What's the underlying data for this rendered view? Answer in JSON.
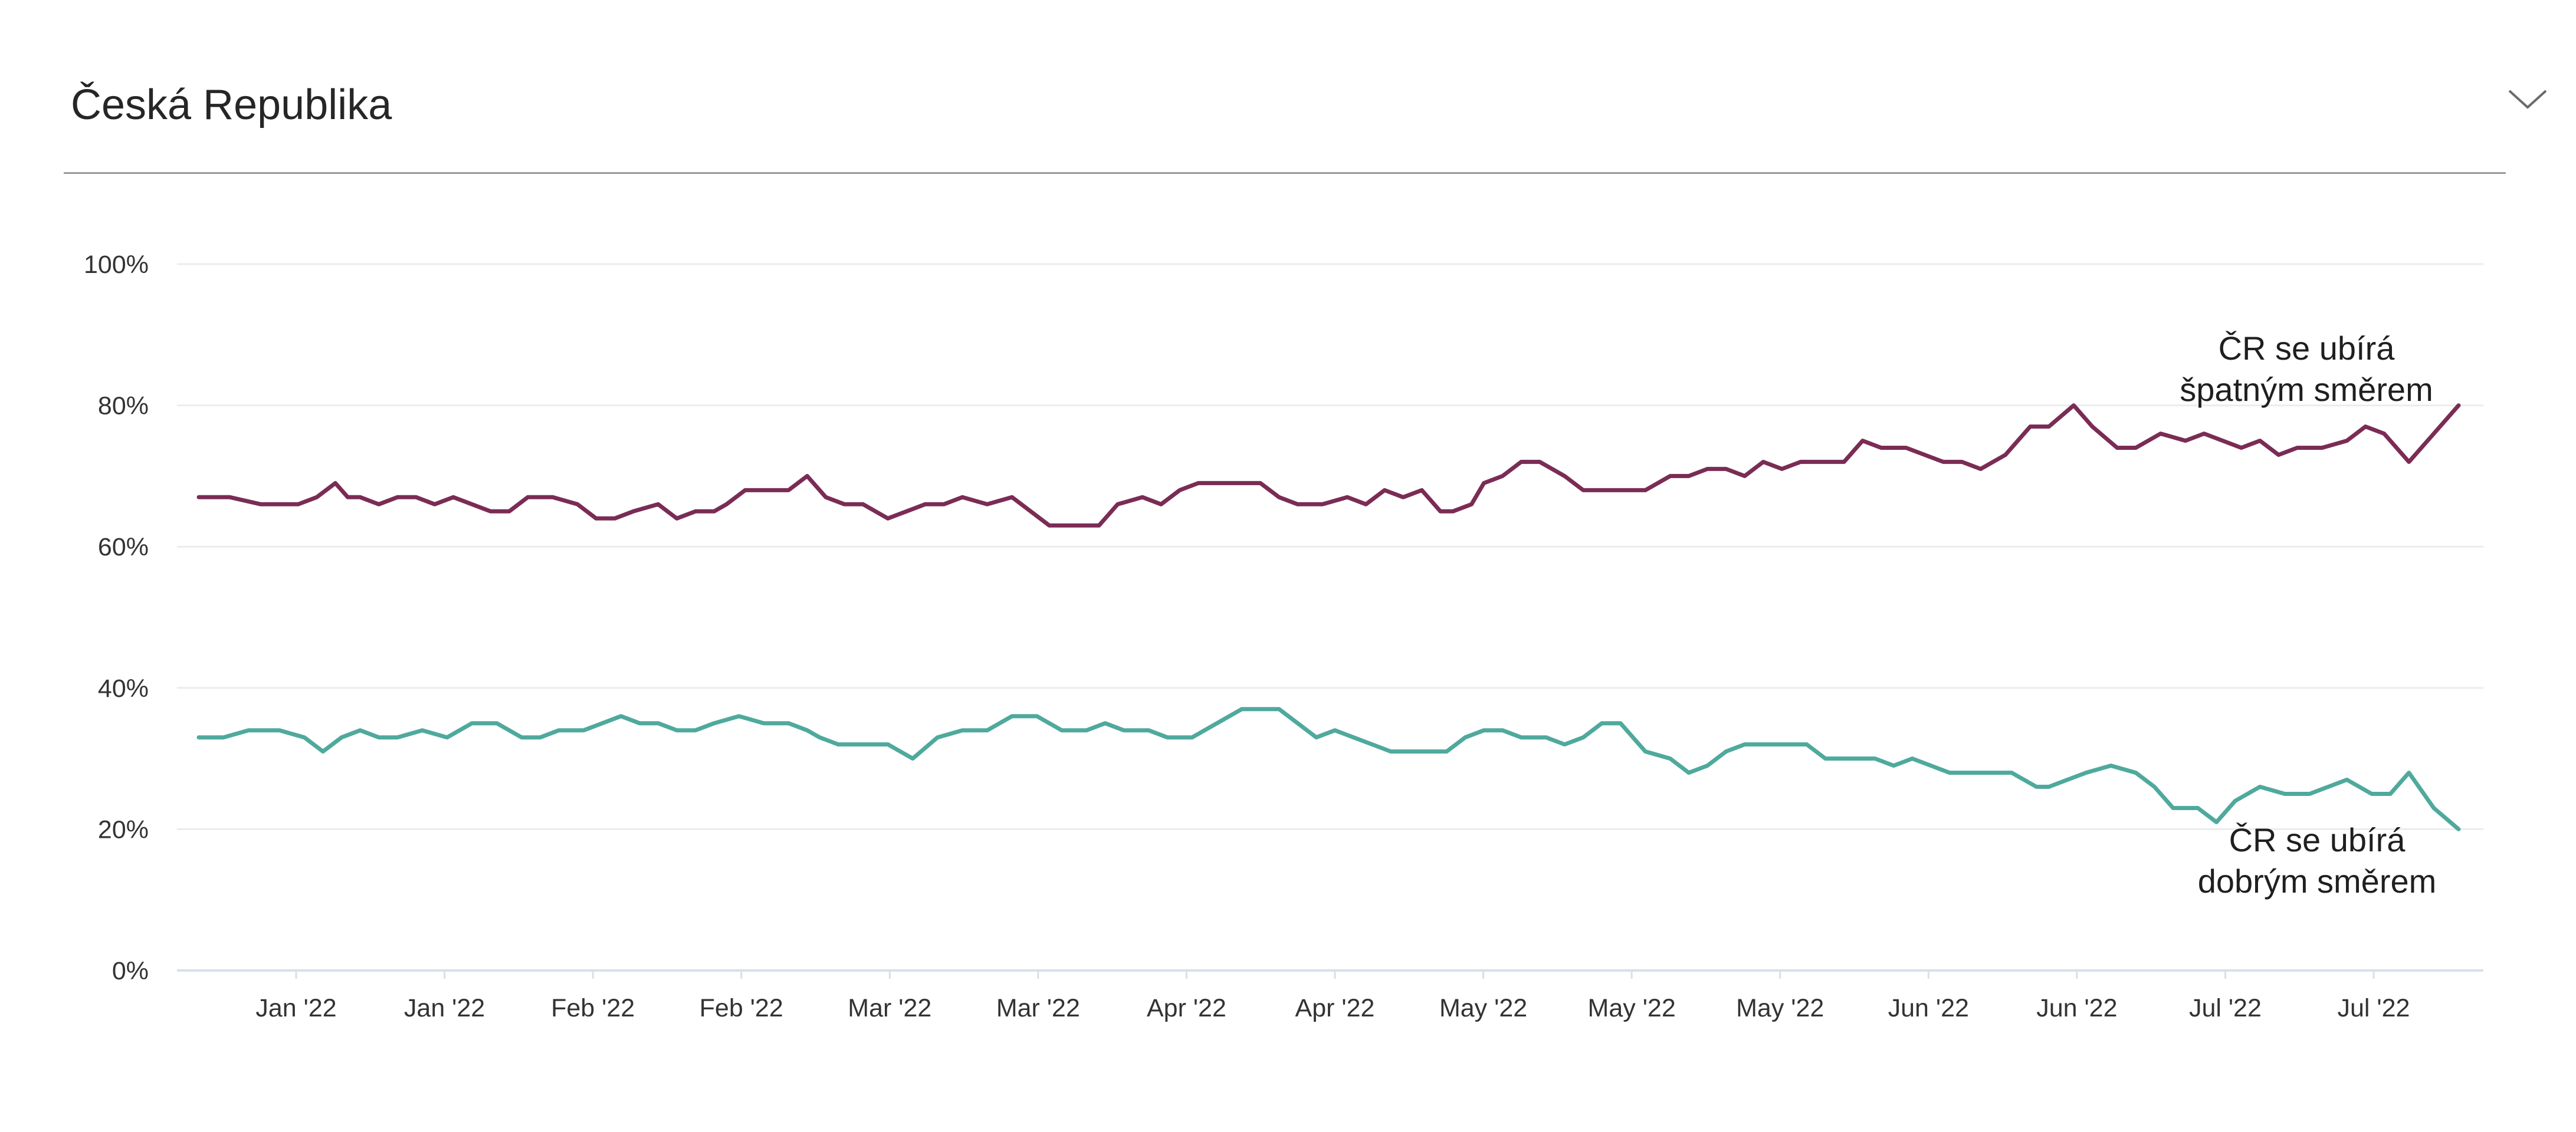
{
  "header": {
    "title": "Česká Republika",
    "toggle_icon": "chevron-down-icon"
  },
  "chart_data": {
    "type": "line",
    "title": "Česká Republika",
    "xlabel": "",
    "ylabel": "",
    "ylim": [
      0,
      100
    ],
    "y_ticks": [
      "0%",
      "20%",
      "40%",
      "60%",
      "80%",
      "100%"
    ],
    "x_ticks": [
      "Jan '22",
      "Jan '22",
      "Feb '22",
      "Feb '22",
      "Mar '22",
      "Mar '22",
      "Apr '22",
      "Apr '22",
      "May '22",
      "May '22",
      "May '22",
      "Jun '22",
      "Jun '22",
      "Jul '22",
      "Jul '22"
    ],
    "grid": true,
    "series": [
      {
        "name": "ČR se ubírá špatným směrem",
        "label_lines": [
          "ČR se ubírá",
          "špatným směrem"
        ],
        "color": "#7a2c55",
        "x": [
          0,
          5,
          10,
          16,
          19,
          22,
          24,
          26,
          29,
          32,
          35,
          38,
          41,
          44,
          47,
          50,
          53,
          57,
          61,
          64,
          67,
          70,
          74,
          77,
          80,
          83,
          85,
          88,
          92,
          95,
          98,
          101,
          104,
          107,
          111,
          114,
          117,
          120,
          123,
          127,
          131,
          134,
          137,
          140,
          142,
          145,
          148,
          152,
          155,
          158,
          161,
          164,
          167,
          171,
          174,
          177,
          181,
          185,
          188,
          191,
          194,
          197,
          200,
          202,
          205,
          207,
          210,
          213,
          216,
          220,
          223,
          226,
          229,
          233,
          237,
          240,
          243,
          246,
          249,
          252,
          255,
          258,
          261,
          265,
          268,
          271,
          275,
          278,
          281,
          284,
          287,
          291,
          295,
          298,
          302,
          305,
          309,
          312,
          316,
          320,
          323,
          326,
          329,
          332,
          335,
          338,
          342,
          346,
          349,
          352,
          356,
          360,
          364
        ],
        "values": [
          67,
          67,
          66,
          66,
          67,
          69,
          67,
          67,
          66,
          67,
          67,
          66,
          67,
          66,
          65,
          65,
          67,
          67,
          66,
          64,
          64,
          65,
          66,
          64,
          65,
          65,
          66,
          68,
          68,
          68,
          70,
          67,
          66,
          66,
          64,
          65,
          66,
          66,
          67,
          66,
          67,
          65,
          63,
          63,
          63,
          63,
          66,
          67,
          66,
          68,
          69,
          69,
          69,
          69,
          67,
          66,
          66,
          67,
          66,
          68,
          67,
          68,
          65,
          65,
          66,
          69,
          70,
          72,
          72,
          70,
          68,
          68,
          68,
          68,
          70,
          70,
          71,
          71,
          70,
          72,
          71,
          72,
          72,
          72,
          75,
          74,
          74,
          73,
          72,
          72,
          71,
          73,
          77,
          77,
          80,
          77,
          74,
          74,
          76,
          75,
          76,
          75,
          74,
          75,
          73,
          74,
          74,
          75,
          77,
          76,
          72,
          76,
          80
        ]
      },
      {
        "name": "ČR se ubírá dobrým směrem",
        "label_lines": [
          "ČR se ubírá",
          "dobrým směrem"
        ],
        "color": "#4fa99d",
        "x": [
          0,
          4,
          8,
          13,
          17,
          20,
          23,
          26,
          29,
          32,
          36,
          40,
          44,
          48,
          52,
          55,
          58,
          62,
          65,
          68,
          71,
          74,
          77,
          80,
          83,
          87,
          91,
          95,
          98,
          100,
          103,
          107,
          111,
          115,
          119,
          123,
          127,
          131,
          135,
          139,
          143,
          146,
          149,
          153,
          156,
          160,
          164,
          168,
          171,
          174,
          177,
          180,
          183,
          186,
          189,
          192,
          195,
          198,
          201,
          204,
          207,
          210,
          213,
          217,
          220,
          223,
          226,
          229,
          233,
          237,
          240,
          243,
          246,
          249,
          252,
          255,
          259,
          262,
          266,
          270,
          273,
          276,
          279,
          282,
          285,
          288,
          292,
          296,
          298,
          301,
          304,
          308,
          312,
          315,
          318,
          322,
          325,
          328,
          332,
          336,
          340,
          343,
          346,
          350,
          353,
          356,
          360,
          364
        ],
        "values": [
          33,
          33,
          34,
          34,
          33,
          31,
          33,
          34,
          33,
          33,
          34,
          33,
          35,
          35,
          33,
          33,
          34,
          34,
          35,
          36,
          35,
          35,
          34,
          34,
          35,
          36,
          35,
          35,
          34,
          33,
          32,
          32,
          32,
          30,
          33,
          34,
          34,
          36,
          36,
          34,
          34,
          35,
          34,
          34,
          33,
          33,
          35,
          37,
          37,
          37,
          35,
          33,
          34,
          33,
          32,
          31,
          31,
          31,
          31,
          33,
          34,
          34,
          33,
          33,
          32,
          33,
          35,
          35,
          31,
          30,
          28,
          29,
          31,
          32,
          32,
          32,
          32,
          30,
          30,
          30,
          29,
          30,
          29,
          28,
          28,
          28,
          28,
          26,
          26,
          27,
          28,
          29,
          28,
          26,
          23,
          23,
          21,
          24,
          26,
          25,
          25,
          26,
          27,
          25,
          25,
          28,
          23,
          20
        ]
      }
    ]
  }
}
